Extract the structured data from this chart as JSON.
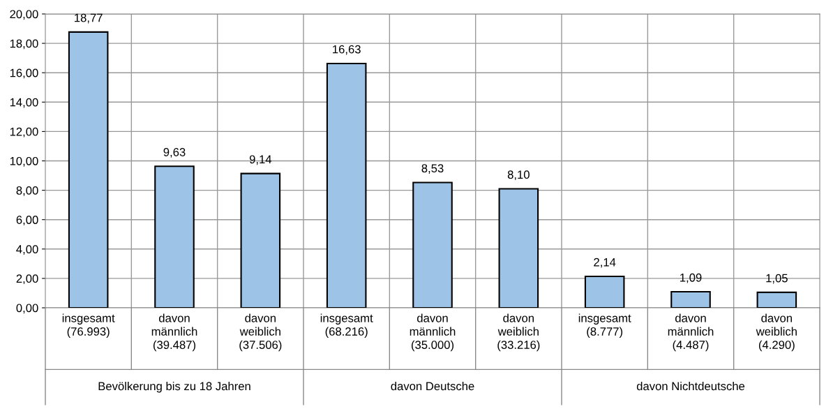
{
  "chart_data": {
    "type": "bar",
    "categories": [
      "insgesamt\n(76.993)",
      "davon\nmännlich\n(39.487)",
      "davon\nweiblich\n(37.506)",
      "insgesamt\n(68.216)",
      "davon\nmännlich\n(35.000)",
      "davon\nweiblich\n(33.216)",
      "insgesamt\n(8.777)",
      "davon\nmännlich\n(4.487)",
      "davon\nweiblich\n(4.290)"
    ],
    "values": [
      18.77,
      9.63,
      9.14,
      16.63,
      8.53,
      8.1,
      2.14,
      1.09,
      1.05
    ],
    "value_labels": [
      "18,77",
      "9,63",
      "9,14",
      "16,63",
      "8,53",
      "8,10",
      "2,14",
      "1,09",
      "1,05"
    ],
    "color": "#9dc3e6",
    "ylim": [
      0,
      20
    ],
    "yticks": [
      {
        "value": 0,
        "label": "0,00"
      },
      {
        "value": 2,
        "label": "2,00"
      },
      {
        "value": 4,
        "label": "4,00"
      },
      {
        "value": 6,
        "label": "6,00"
      },
      {
        "value": 8,
        "label": "8,00"
      },
      {
        "value": 10,
        "label": "10,00"
      },
      {
        "value": 12,
        "label": "12,00"
      },
      {
        "value": 14,
        "label": "14,00"
      },
      {
        "value": 16,
        "label": "16,00"
      },
      {
        "value": 18,
        "label": "18,00"
      },
      {
        "value": 20,
        "label": "20,00"
      }
    ],
    "grid": true,
    "annotations": [
      "Bevölkerung bis zu 18 Jahren",
      "davon Deutsche",
      "davon Nichtdeutsche"
    ]
  }
}
